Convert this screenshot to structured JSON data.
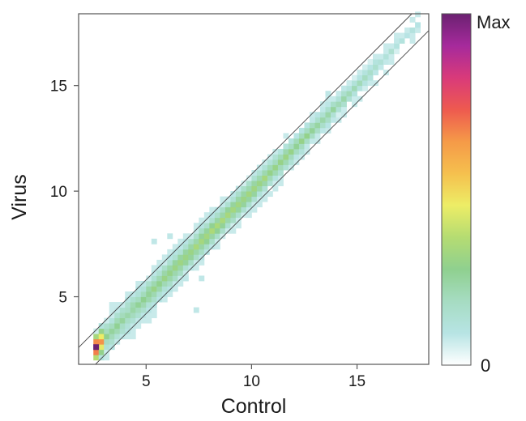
{
  "chart_data": {
    "type": "heatmap",
    "xlabel": "Control",
    "ylabel": "Virus",
    "xlim": [
      1.8,
      18.4
    ],
    "ylim": [
      1.8,
      18.4
    ],
    "x_ticks": [
      5,
      10,
      15
    ],
    "y_ticks": [
      5,
      10,
      15
    ],
    "x_tick_labels": [
      "5",
      "10",
      "15"
    ],
    "y_tick_labels": [
      "5",
      "10",
      "15"
    ],
    "grid": false,
    "bin_width": 0.25,
    "diagonal_band": {
      "offsets": [
        0.8,
        -0.8
      ]
    },
    "colorbar": {
      "max_label": "Max",
      "min_label": "0",
      "colors": [
        "#ffffff",
        "#b7e4e4",
        "#a6dcc2",
        "#8fd08f",
        "#b5dc72",
        "#eded66",
        "#f5c04e",
        "#f59a48",
        "#ee5a4f",
        "#d93a7a",
        "#a62a9c",
        "#6b2171"
      ]
    },
    "density_profile": [
      {
        "x": 2.5,
        "density": 1.0,
        "width": 1.6
      },
      {
        "x": 3.0,
        "density": 0.26,
        "width": 2.2
      },
      {
        "x": 4.0,
        "density": 0.24,
        "width": 2.4
      },
      {
        "x": 6.0,
        "density": 0.3,
        "width": 2.2
      },
      {
        "x": 8.0,
        "density": 0.34,
        "width": 2.1
      },
      {
        "x": 10.0,
        "density": 0.32,
        "width": 1.9
      },
      {
        "x": 12.0,
        "density": 0.28,
        "width": 1.7
      },
      {
        "x": 14.0,
        "density": 0.22,
        "width": 1.5
      },
      {
        "x": 16.0,
        "density": 0.14,
        "width": 1.3
      },
      {
        "x": 17.75,
        "density": 0.08,
        "width": 1.0
      }
    ],
    "points": [
      [
        2.5,
        2.5,
        1.0
      ],
      [
        5.25,
        7.5,
        0.08
      ],
      [
        6.0,
        7.75,
        0.08
      ],
      [
        7.25,
        4.25,
        0.08
      ],
      [
        6.75,
        5.75,
        0.08
      ],
      [
        7.5,
        5.75,
        0.08
      ],
      [
        13.5,
        14.5,
        0.08
      ],
      [
        12.75,
        13.25,
        0.08
      ]
    ]
  }
}
